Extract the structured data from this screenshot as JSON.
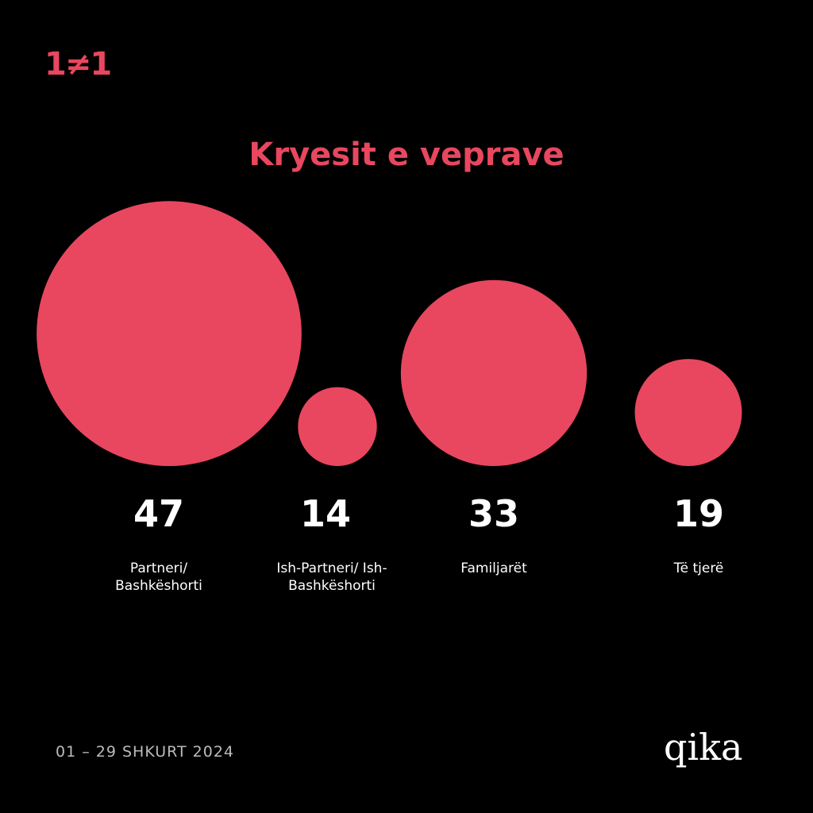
{
  "logo": "1≠1",
  "chart_data": {
    "type": "bubble",
    "title": "Kryesit e veprave",
    "color": "#e8475f",
    "categories": [
      "Partneri/ Bashkëshorti",
      "Ish-Partneri/ Ish-Bashkëshorti",
      "Familjarët",
      "Të tjerë"
    ],
    "values": [
      47,
      14,
      33,
      19
    ]
  },
  "footer_date": "01 – 29 SHKURT 2024",
  "brand": "qika"
}
